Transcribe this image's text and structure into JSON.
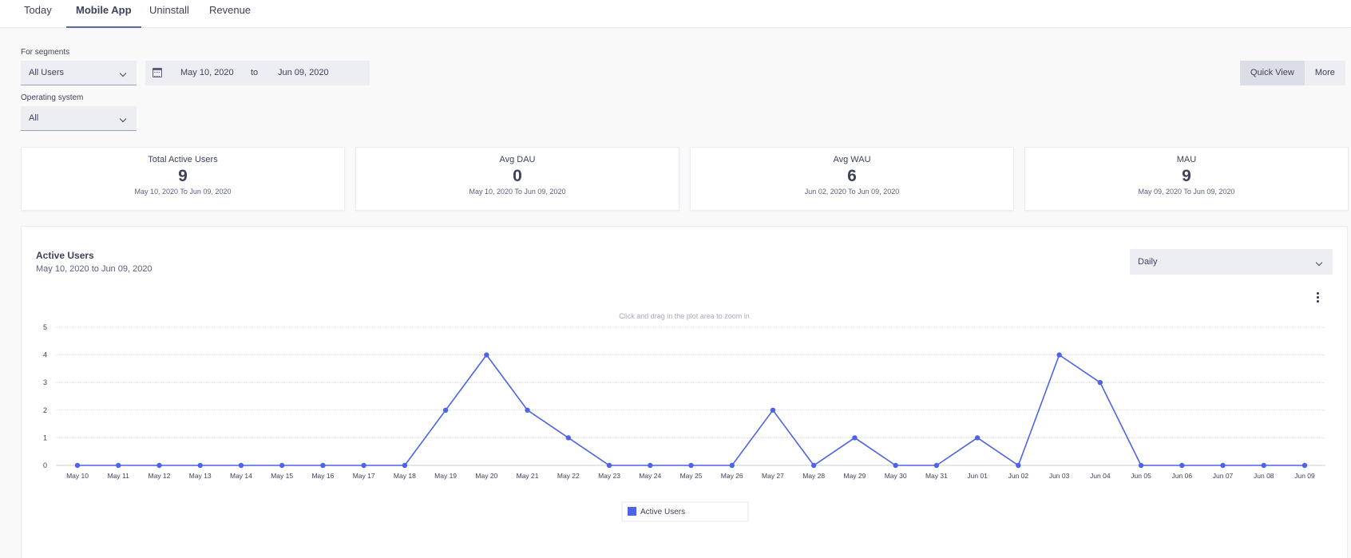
{
  "nav": {
    "tabs": [
      {
        "label": "Today"
      },
      {
        "label": "Mobile App"
      },
      {
        "label": "Uninstall"
      },
      {
        "label": "Revenue"
      }
    ]
  },
  "filters": {
    "segments_label": "For segments",
    "segment_value": "All Users",
    "date_from": "May 10, 2020",
    "date_to_word": "to",
    "date_to": "Jun 09, 2020",
    "os_label": "Operating system",
    "os_value": "All",
    "quick_view_label": "Quick View",
    "more_label": "More"
  },
  "metrics": [
    {
      "title": "Total Active Users",
      "value": "9",
      "range": "May 10, 2020 To Jun 09, 2020"
    },
    {
      "title": "Avg DAU",
      "value": "0",
      "range": "May 10, 2020 To Jun 09, 2020"
    },
    {
      "title": "Avg WAU",
      "value": "6",
      "range": "Jun 02, 2020 To Jun 09, 2020"
    },
    {
      "title": "MAU",
      "value": "9",
      "range": "May 09, 2020 To Jun 09, 2020"
    }
  ],
  "chart_panel": {
    "title": "Active Users",
    "subtitle": "May 10, 2020 to Jun 09, 2020",
    "granularity": "Daily",
    "zoom_hint": "Click and drag in the plot area to zoom in"
  },
  "colors": {
    "series": "#4d63e8",
    "grid": "#d7d9e0",
    "text": "#3d4258"
  },
  "chart_data": {
    "type": "line",
    "title": "Active Users",
    "x": [
      "May 10",
      "May 11",
      "May 12",
      "May 13",
      "May 14",
      "May 15",
      "May 16",
      "May 17",
      "May 18",
      "May 19",
      "May 20",
      "May 21",
      "May 22",
      "May 23",
      "May 24",
      "May 25",
      "May 26",
      "May 27",
      "May 28",
      "May 29",
      "May 30",
      "May 31",
      "Jun 01",
      "Jun 02",
      "Jun 03",
      "Jun 04",
      "Jun 05",
      "Jun 06",
      "Jun 07",
      "Jun 08",
      "Jun 09"
    ],
    "series": [
      {
        "name": "Active Users",
        "values": [
          0,
          0,
          0,
          0,
          0,
          0,
          0,
          0,
          0,
          2,
          4,
          2,
          1,
          0,
          0,
          0,
          0,
          2,
          0,
          1,
          0,
          0,
          1,
          0,
          4,
          3,
          0,
          0,
          0,
          0,
          0
        ]
      }
    ],
    "yticks": [
      0,
      1,
      2,
      3,
      4,
      5
    ],
    "ylim": [
      0,
      5
    ],
    "grid": true,
    "legend": "bottom-center"
  }
}
